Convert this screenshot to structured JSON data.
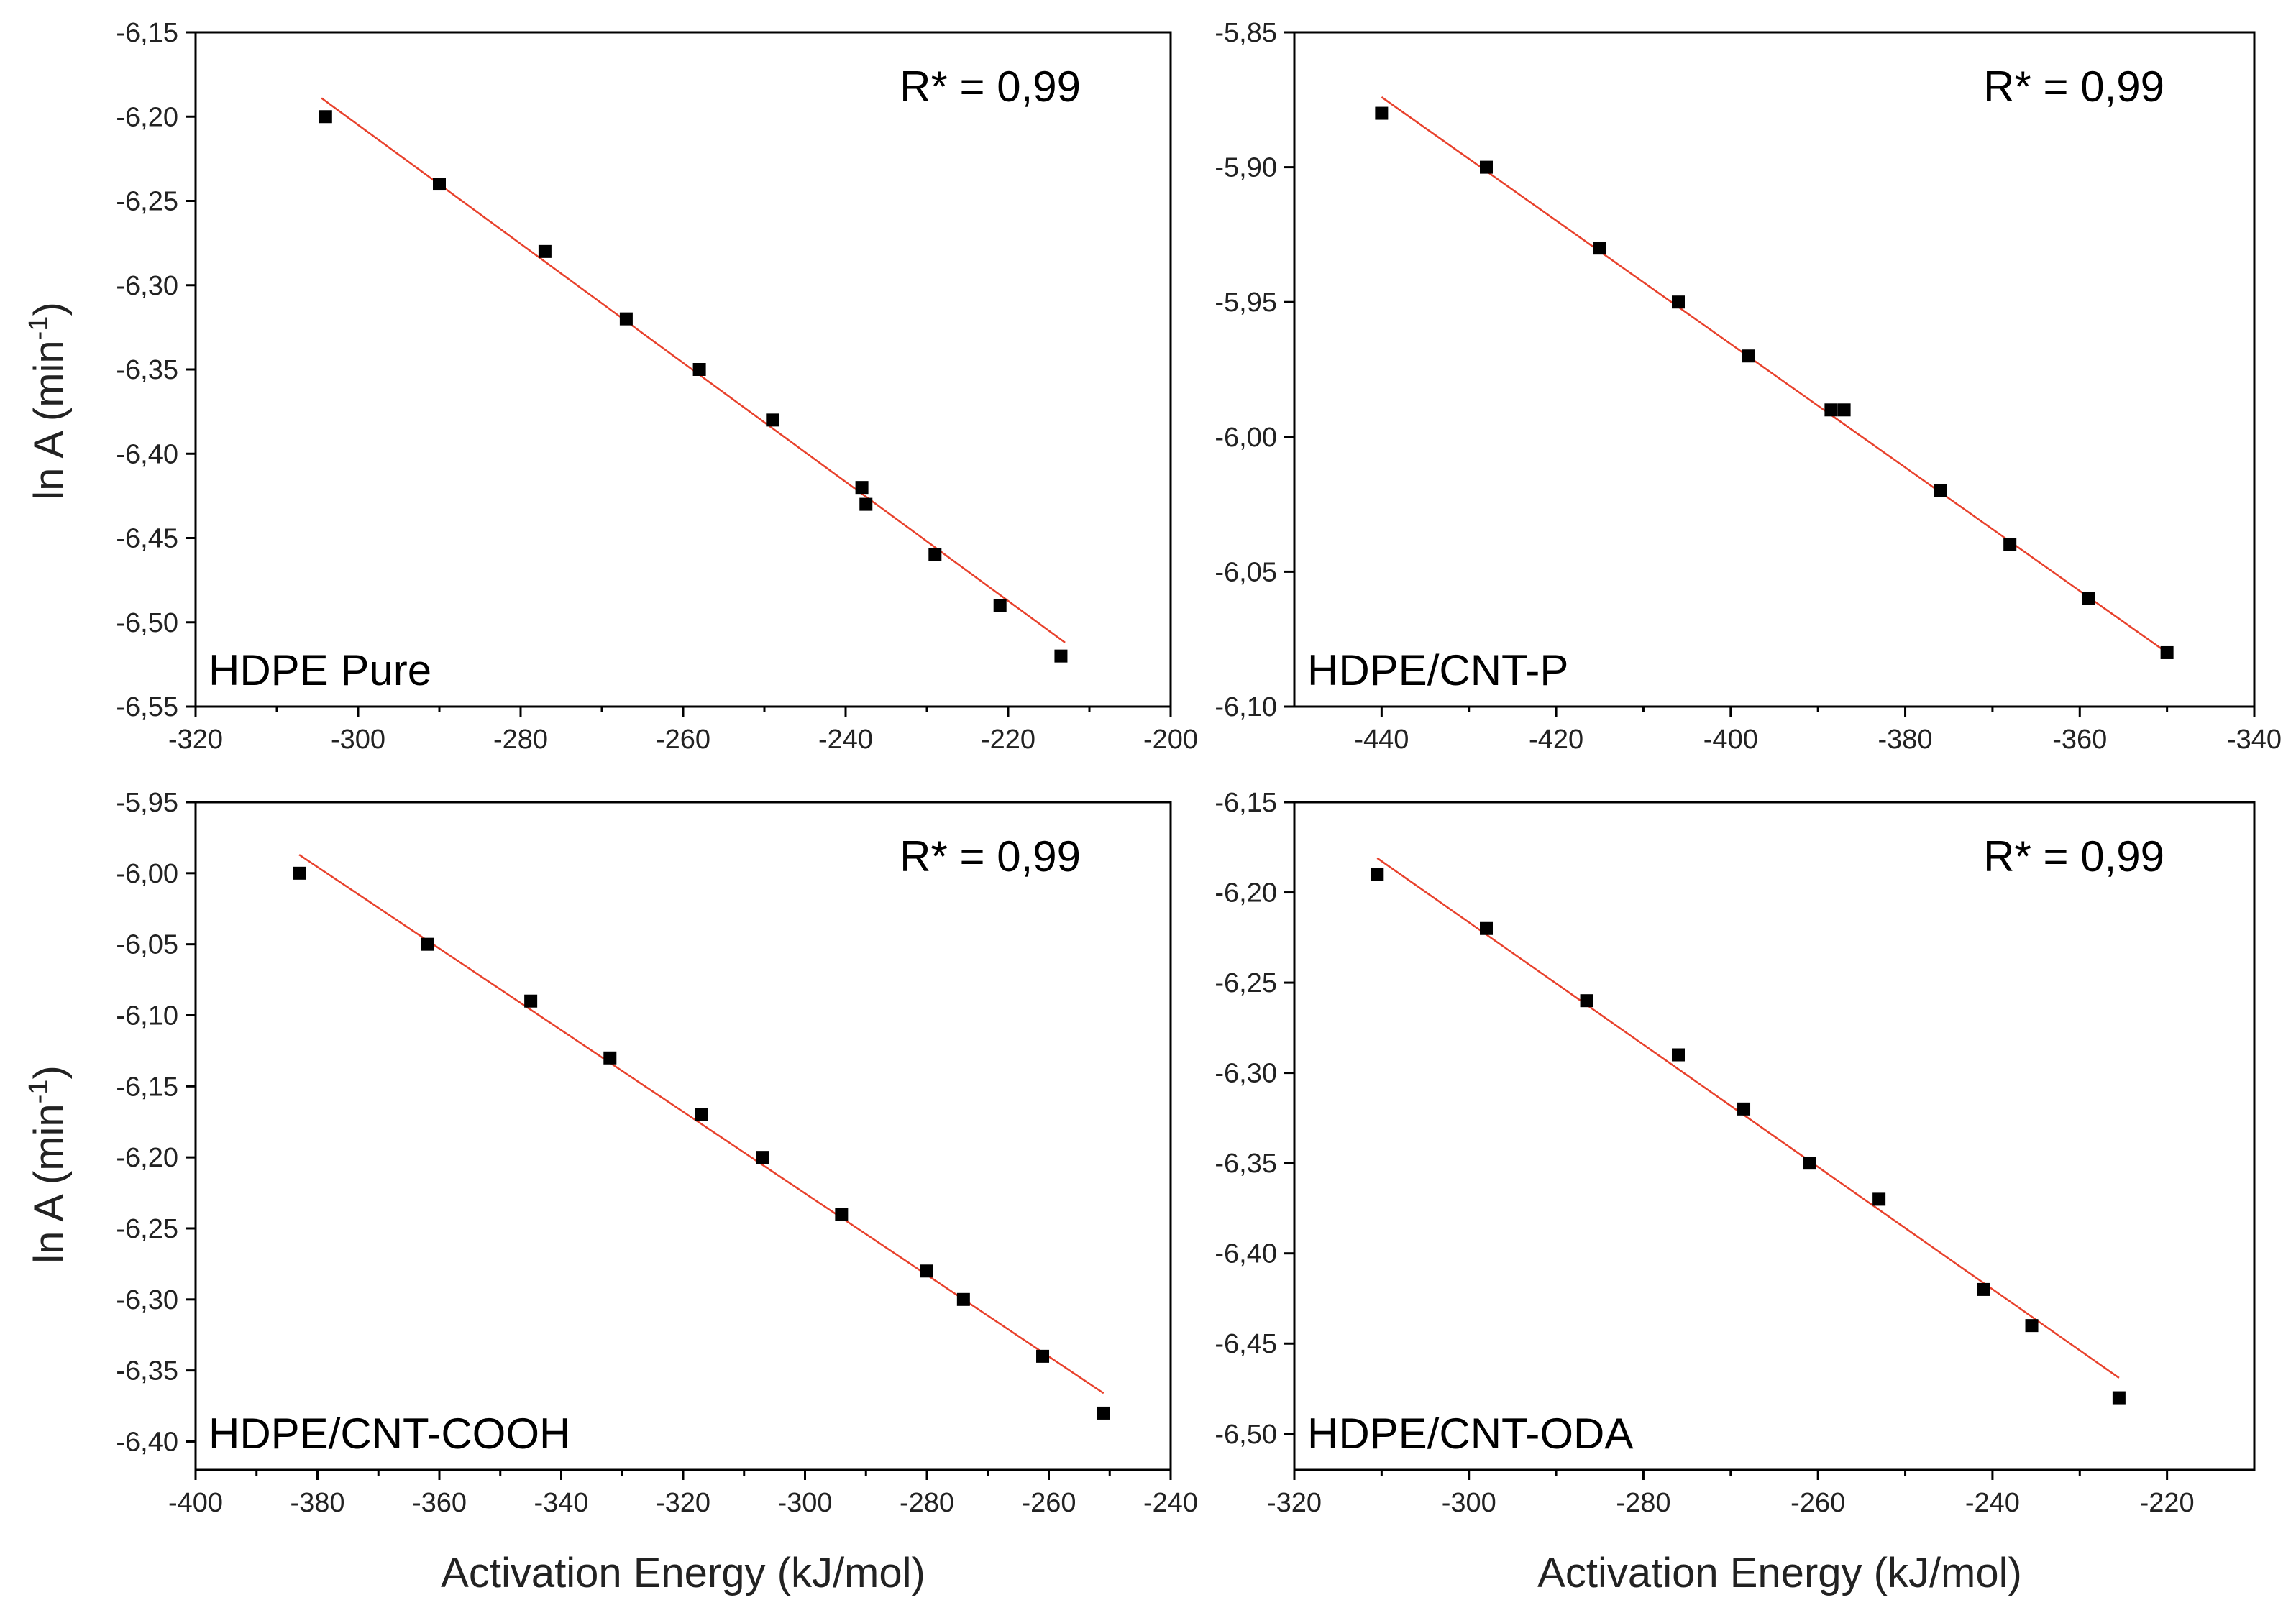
{
  "colors": {
    "fit_line": "#e8412c",
    "marker": "#000000",
    "axis": "#000000"
  },
  "axis_titles": {
    "x_left": "Activation Energy (kJ/mol)",
    "x_right": "Activation Energy (kJ/mol)",
    "y_top": "ln A (min",
    "y_bottom": "ln A (min",
    "y_sup": "-1",
    "y_close": ")"
  },
  "chart_data": [
    {
      "type": "scatter",
      "label": "HDPE Pure",
      "annotation": "R* = 0,99",
      "xlabel": "",
      "ylabel": "ln A (min-1)",
      "xlim": [
        -320,
        -200
      ],
      "ylim": [
        -6.55,
        -6.15
      ],
      "xticks": [
        -320,
        -300,
        -280,
        -260,
        -240,
        -220,
        -200
      ],
      "yticks": [
        -6.55,
        -6.5,
        -6.45,
        -6.4,
        -6.35,
        -6.3,
        -6.25,
        -6.2,
        -6.15
      ],
      "x": [
        -304,
        -290,
        -277,
        -267,
        -258,
        -249,
        -238,
        -237.5,
        -229,
        -221,
        -213.5
      ],
      "y": [
        -6.2,
        -6.24,
        -6.28,
        -6.32,
        -6.35,
        -6.38,
        -6.42,
        -6.43,
        -6.46,
        -6.49,
        -6.52
      ],
      "fit": {
        "x": [
          -304.5,
          -213
        ],
        "y": [
          -6.189,
          -6.512
        ]
      }
    },
    {
      "type": "scatter",
      "label": "HDPE/CNT-P",
      "annotation": "R* = 0,99",
      "xlabel": "",
      "ylabel": "",
      "xlim": [
        -450,
        -340
      ],
      "ylim": [
        -6.1,
        -5.85
      ],
      "xticks": [
        -440,
        -420,
        -400,
        -380,
        -360,
        -340
      ],
      "yticks": [
        -6.1,
        -6.05,
        -6.0,
        -5.95,
        -5.9,
        -5.85
      ],
      "x": [
        -440,
        -428,
        -415,
        -406,
        -398,
        -388.5,
        -387,
        -376,
        -368,
        -359,
        -350
      ],
      "y": [
        -5.88,
        -5.9,
        -5.93,
        -5.95,
        -5.97,
        -5.99,
        -5.99,
        -6.02,
        -6.04,
        -6.06,
        -6.08
      ],
      "fit": {
        "x": [
          -440,
          -350
        ],
        "y": [
          -5.874,
          -6.08
        ]
      }
    },
    {
      "type": "scatter",
      "label": "HDPE/CNT-COOH",
      "annotation": "R* = 0,99",
      "xlabel": "Activation Energy (kJ/mol)",
      "ylabel": "ln A (min-1)",
      "xlim": [
        -400,
        -240
      ],
      "ylim": [
        -6.42,
        -5.95
      ],
      "xticks": [
        -400,
        -380,
        -360,
        -340,
        -320,
        -300,
        -280,
        -260,
        -240
      ],
      "yticks": [
        -6.4,
        -6.35,
        -6.3,
        -6.25,
        -6.2,
        -6.15,
        -6.1,
        -6.05,
        -6.0,
        -5.95
      ],
      "x": [
        -383,
        -362,
        -345,
        -332,
        -317,
        -307,
        -294,
        -280,
        -274,
        -261,
        -251
      ],
      "y": [
        -6.0,
        -6.05,
        -6.09,
        -6.13,
        -6.17,
        -6.2,
        -6.24,
        -6.28,
        -6.3,
        -6.34,
        -6.38
      ],
      "fit": {
        "x": [
          -383,
          -251
        ],
        "y": [
          -5.987,
          -6.366
        ]
      }
    },
    {
      "type": "scatter",
      "label": "HDPE/CNT-ODA",
      "annotation": "R* = 0,99",
      "xlabel": "Activation Energy (kJ/mol)",
      "ylabel": "",
      "xlim": [
        -320,
        -210
      ],
      "ylim": [
        -6.52,
        -6.15
      ],
      "xticks": [
        -320,
        -300,
        -280,
        -260,
        -240,
        -220
      ],
      "yticks": [
        -6.5,
        -6.45,
        -6.4,
        -6.35,
        -6.3,
        -6.25,
        -6.2,
        -6.15
      ],
      "x": [
        -310.5,
        -298,
        -286.5,
        -276,
        -268.5,
        -261,
        -253,
        -241,
        -235.5,
        -225.5
      ],
      "y": [
        -6.19,
        -6.22,
        -6.26,
        -6.29,
        -6.32,
        -6.35,
        -6.37,
        -6.42,
        -6.44,
        -6.48
      ],
      "fit": {
        "x": [
          -310.5,
          -225.5
        ],
        "y": [
          -6.181,
          -6.469
        ]
      }
    }
  ]
}
